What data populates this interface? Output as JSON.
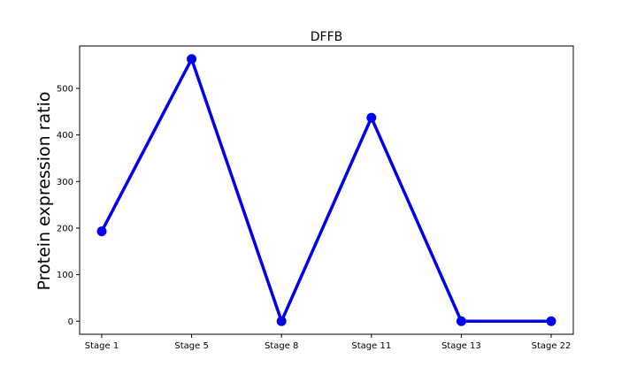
{
  "chart_data": {
    "type": "line",
    "title": "DFFB",
    "xlabel": "",
    "ylabel": "Protein expression ratio",
    "categories": [
      "Stage 1",
      "Stage 5",
      "Stage 8",
      "Stage 11",
      "Stage 13",
      "Stage 22"
    ],
    "series": [
      {
        "values": [
          193,
          563,
          0,
          437,
          0,
          0
        ],
        "color": "#0000ee",
        "marker": "circle"
      }
    ],
    "yticks": [
      0,
      100,
      200,
      300,
      400,
      500
    ],
    "ylim": [
      -28,
      591
    ],
    "grid": false,
    "legend": "none"
  }
}
